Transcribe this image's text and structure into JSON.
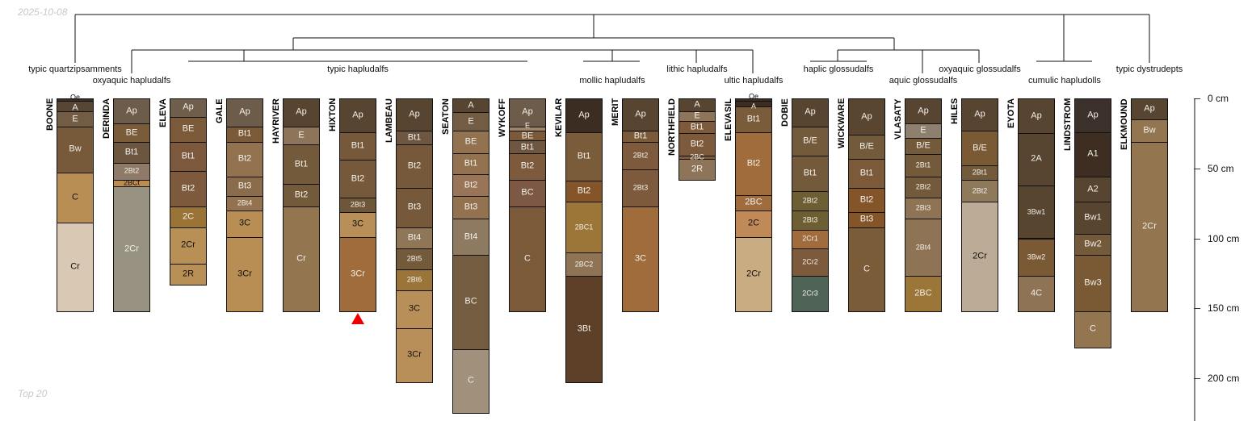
{
  "header": {
    "date": "2025-10-08"
  },
  "footer": {
    "caption": "Top 20"
  },
  "taxa": [
    {
      "label": "typic quartzipsamments",
      "row": 0,
      "center_profile": 0
    },
    {
      "label": "oxyaquic hapludalfs",
      "row": 1,
      "center_profile": 1
    },
    {
      "label": "typic hapludalfs",
      "row": 0,
      "center_profile": 5
    },
    {
      "label": "mollic hapludalfs",
      "row": 1,
      "center_profile": 9.5
    },
    {
      "label": "lithic hapludalfs",
      "row": 0,
      "center_profile": 11
    },
    {
      "label": "ultic hapludalfs",
      "row": 1,
      "center_profile": 12
    },
    {
      "label": "haplic glossudalfs",
      "row": 0,
      "center_profile": 13.5
    },
    {
      "label": "aquic glossudalfs",
      "row": 1,
      "center_profile": 15
    },
    {
      "label": "oxyaquic glossudalfs",
      "row": 0,
      "center_profile": 16
    },
    {
      "label": "cumulic hapludolls",
      "row": 1,
      "center_profile": 17.5
    },
    {
      "label": "typic dystrudepts",
      "row": 0,
      "center_profile": 19
    }
  ],
  "depth_axis": {
    "ticks": [
      0,
      50,
      100,
      150,
      200
    ],
    "unit": "cm",
    "labels": [
      "0 cm",
      "50 cm",
      "100 cm",
      "150 cm",
      "200 cm"
    ]
  },
  "flagged_profile": 5,
  "profiles": [
    {
      "name": "BOONE",
      "horizons": [
        [
          "Oe",
          0,
          2,
          "#3b2f23"
        ],
        [
          "A",
          2,
          9,
          "#574634"
        ],
        [
          "E",
          9,
          20,
          "#725c44"
        ],
        [
          "Bw",
          20,
          53,
          "#775a3a"
        ],
        [
          "C",
          53,
          89,
          "#b98e55"
        ],
        [
          "Cr",
          89,
          152,
          "#d9c8b3"
        ]
      ]
    },
    {
      "name": "DERINDA",
      "horizons": [
        [
          "Ap",
          0,
          18,
          "#6e5c4b"
        ],
        [
          "BE",
          18,
          31,
          "#7a5b3a"
        ],
        [
          "Bt1",
          31,
          46,
          "#6c5640"
        ],
        [
          "2Bt2",
          46,
          58,
          "#8e7a66"
        ],
        [
          "2BCt",
          58,
          63,
          "#bc8c50"
        ],
        [
          "2Cr",
          63,
          152,
          "#979282"
        ]
      ]
    },
    {
      "name": "ELEVA",
      "horizons": [
        [
          "Ap",
          0,
          13,
          "#6f5e4c"
        ],
        [
          "BE",
          13,
          31,
          "#7a5a38"
        ],
        [
          "Bt1",
          31,
          52,
          "#7c593c"
        ],
        [
          "Bt2",
          52,
          77,
          "#7d5a3c"
        ],
        [
          "2C",
          77,
          92,
          "#9a7436"
        ],
        [
          "2Cr",
          92,
          118,
          "#b88f55"
        ],
        [
          "2R",
          118,
          133,
          "#b88f55"
        ]
      ]
    },
    {
      "name": "GALE",
      "horizons": [
        [
          "Ap",
          0,
          20,
          "#6e5c4b"
        ],
        [
          "Bt1",
          20,
          31,
          "#7a5a38"
        ],
        [
          "Bt2",
          31,
          56,
          "#93734f"
        ],
        [
          "Bt3",
          56,
          70,
          "#8a6c4c"
        ],
        [
          "2Bt4",
          70,
          80,
          "#93734f"
        ],
        [
          "3C",
          80,
          99,
          "#b98e55"
        ],
        [
          "3Cr",
          99,
          152,
          "#b98e55"
        ]
      ]
    },
    {
      "name": "HAYRIVER",
      "horizons": [
        [
          "Ap",
          0,
          20,
          "#574531"
        ],
        [
          "E",
          20,
          33,
          "#8e7559"
        ],
        [
          "Bt1",
          33,
          61,
          "#735a3b"
        ],
        [
          "Bt2",
          61,
          77,
          "#735a3b"
        ],
        [
          "Cr",
          77,
          152,
          "#937650"
        ]
      ]
    },
    {
      "name": "HIXTON",
      "horizons": [
        [
          "Ap",
          0,
          24,
          "#574531"
        ],
        [
          "Bt1",
          24,
          44,
          "#76593a"
        ],
        [
          "Bt2",
          44,
          71,
          "#76593a"
        ],
        [
          "2Bt3",
          71,
          81,
          "#6e5638"
        ],
        [
          "3C",
          81,
          99,
          "#b88f58"
        ],
        [
          "3Cr",
          99,
          152,
          "#a06c3c"
        ]
      ]
    },
    {
      "name": "LAMBEAU",
      "horizons": [
        [
          "Ap",
          0,
          23,
          "#574531"
        ],
        [
          "Bt1",
          23,
          33,
          "#6e5640"
        ],
        [
          "Bt2",
          33,
          64,
          "#76593a"
        ],
        [
          "Bt3",
          64,
          92,
          "#76593a"
        ],
        [
          "Bt4",
          92,
          107,
          "#8e7657"
        ],
        [
          "2Bt5",
          107,
          122,
          "#735a3b"
        ],
        [
          "2Bt6",
          122,
          137,
          "#9a7438"
        ],
        [
          "3C",
          137,
          164,
          "#b88f58"
        ],
        [
          "3Cr",
          164,
          203,
          "#b88f58"
        ]
      ]
    },
    {
      "name": "SEATON",
      "horizons": [
        [
          "A",
          0,
          10,
          "#574531"
        ],
        [
          "E",
          10,
          23,
          "#725c44"
        ],
        [
          "BE",
          23,
          39,
          "#93734f"
        ],
        [
          "Bt1",
          39,
          54,
          "#93734f"
        ],
        [
          "Bt2",
          54,
          70,
          "#9a7456"
        ],
        [
          "Bt3",
          70,
          86,
          "#93734f"
        ],
        [
          "Bt4",
          86,
          112,
          "#8e7a60"
        ],
        [
          "BC",
          112,
          179,
          "#735c40"
        ],
        [
          "C",
          179,
          225,
          "#a0907c"
        ]
      ]
    },
    {
      "name": "WYKOFF",
      "horizons": [
        [
          "Ap",
          0,
          20,
          "#6e5c4b"
        ],
        [
          "E",
          20,
          23,
          "#a08466"
        ],
        [
          "BE",
          23,
          30,
          "#7a5a38"
        ],
        [
          "Bt1",
          30,
          39,
          "#6e5640"
        ],
        [
          "Bt2",
          39,
          58,
          "#7d5a3c"
        ],
        [
          "BC",
          58,
          77,
          "#7c5845"
        ],
        [
          "C",
          77,
          152,
          "#7b5a3a"
        ]
      ]
    },
    {
      "name": "KEVILAR",
      "horizons": [
        [
          "Ap",
          0,
          24,
          "#3b2d21"
        ],
        [
          "Bt1",
          24,
          59,
          "#7a5c3a"
        ],
        [
          "Bt2",
          59,
          74,
          "#85552a"
        ],
        [
          "2BC1",
          74,
          110,
          "#9b7638"
        ],
        [
          "2BC2",
          110,
          127,
          "#8e7455"
        ],
        [
          "3Bt",
          127,
          203,
          "#5e4028"
        ]
      ]
    },
    {
      "name": "MERIT",
      "horizons": [
        [
          "Ap",
          0,
          23,
          "#574531"
        ],
        [
          "Bt1",
          23,
          31,
          "#7a5a38"
        ],
        [
          "2Bt2",
          31,
          51,
          "#7d5a3c"
        ],
        [
          "2Bt3",
          51,
          77,
          "#7d5a3c"
        ],
        [
          "3C",
          77,
          152,
          "#a06c3c"
        ]
      ]
    },
    {
      "name": "NORTHFIELD",
      "horizons": [
        [
          "A",
          0,
          9,
          "#574531"
        ],
        [
          "E",
          9,
          16,
          "#8e7559"
        ],
        [
          "Bt1",
          16,
          25,
          "#7d5a3c"
        ],
        [
          "Bt2",
          25,
          41,
          "#7d5a3c"
        ],
        [
          "2BC",
          41,
          43,
          "#7d5a3c"
        ],
        [
          "2R",
          43,
          58,
          "#8e7559"
        ]
      ]
    },
    {
      "name": "ELEVASIL",
      "horizons": [
        [
          "Oe",
          0,
          2,
          "#3b2f23"
        ],
        [
          "A",
          2,
          6,
          "#3b2d21"
        ],
        [
          "Bt1",
          6,
          24,
          "#7a5c3a"
        ],
        [
          "Bt2",
          24,
          69,
          "#a06c3c"
        ],
        [
          "2BC",
          69,
          80,
          "#a06c3c"
        ],
        [
          "2C",
          80,
          99,
          "#c08a58"
        ],
        [
          "2Cr",
          99,
          152,
          "#c9ac82"
        ]
      ]
    },
    {
      "name": "DOBIE",
      "horizons": [
        [
          "Ap",
          0,
          20,
          "#574531"
        ],
        [
          "B/E",
          20,
          41,
          "#735a3b"
        ],
        [
          "Bt1",
          41,
          66,
          "#735a3b"
        ],
        [
          "2Bt2",
          66,
          80,
          "#6e5e34"
        ],
        [
          "2Bt3",
          80,
          94,
          "#6e5e34"
        ],
        [
          "2Cr1",
          94,
          107,
          "#a06c3c"
        ],
        [
          "2Cr2",
          107,
          127,
          "#7d5a3c"
        ],
        [
          "2Cr3",
          127,
          152,
          "#4f6457"
        ]
      ]
    },
    {
      "name": "WICKWARE",
      "horizons": [
        [
          "Ap",
          0,
          26,
          "#5a4630"
        ],
        [
          "B/E",
          26,
          43,
          "#735a3b"
        ],
        [
          "Bt1",
          43,
          64,
          "#7a5a38"
        ],
        [
          "Bt2",
          64,
          81,
          "#85552a"
        ],
        [
          "Bt3",
          81,
          92,
          "#85552a"
        ],
        [
          "C",
          92,
          152,
          "#7a5c38"
        ]
      ]
    },
    {
      "name": "VLASATY",
      "horizons": [
        [
          "Ap",
          0,
          18,
          "#574531"
        ],
        [
          "E",
          18,
          28,
          "#8e7f6e"
        ],
        [
          "B/E",
          28,
          40,
          "#735a3b"
        ],
        [
          "2Bt1",
          40,
          56,
          "#735a3b"
        ],
        [
          "2Bt2",
          56,
          71,
          "#735a3b"
        ],
        [
          "2Bt3",
          71,
          86,
          "#8e7455"
        ],
        [
          "2Bt4",
          86,
          127,
          "#8e7455"
        ],
        [
          "2BC",
          127,
          152,
          "#9b7638"
        ]
      ]
    },
    {
      "name": "HILES",
      "horizons": [
        [
          "Ap",
          0,
          23,
          "#574531"
        ],
        [
          "B/E",
          23,
          48,
          "#7a5a35"
        ],
        [
          "2Bt1",
          48,
          58,
          "#735a3b"
        ],
        [
          "2Bt2",
          58,
          74,
          "#8e7a5a"
        ],
        [
          "2Cr",
          74,
          152,
          "#bcab96"
        ]
      ]
    },
    {
      "name": "EYOTA",
      "horizons": [
        [
          "Ap",
          0,
          25,
          "#574531"
        ],
        [
          "2A",
          25,
          62,
          "#574531"
        ],
        [
          "3Bw1",
          62,
          100,
          "#574530"
        ],
        [
          "3Bw2",
          100,
          127,
          "#7a5a35"
        ],
        [
          "4C",
          127,
          152,
          "#8e7455"
        ]
      ]
    },
    {
      "name": "LINDSTROM",
      "horizons": [
        [
          "Ap",
          0,
          24,
          "#3b302a"
        ],
        [
          "A1",
          24,
          56,
          "#3d2e21"
        ],
        [
          "A2",
          56,
          74,
          "#574531"
        ],
        [
          "Bw1",
          74,
          97,
          "#574530"
        ],
        [
          "Bw2",
          97,
          112,
          "#735a3b"
        ],
        [
          "Bw3",
          112,
          152,
          "#7a5a35"
        ],
        [
          "C",
          152,
          178,
          "#937650"
        ]
      ]
    },
    {
      "name": "ELKMOUND",
      "horizons": [
        [
          "Ap",
          0,
          15,
          "#574531"
        ],
        [
          "Bw",
          15,
          31,
          "#937650"
        ],
        [
          "2Cr",
          31,
          152,
          "#937650"
        ]
      ]
    }
  ]
}
